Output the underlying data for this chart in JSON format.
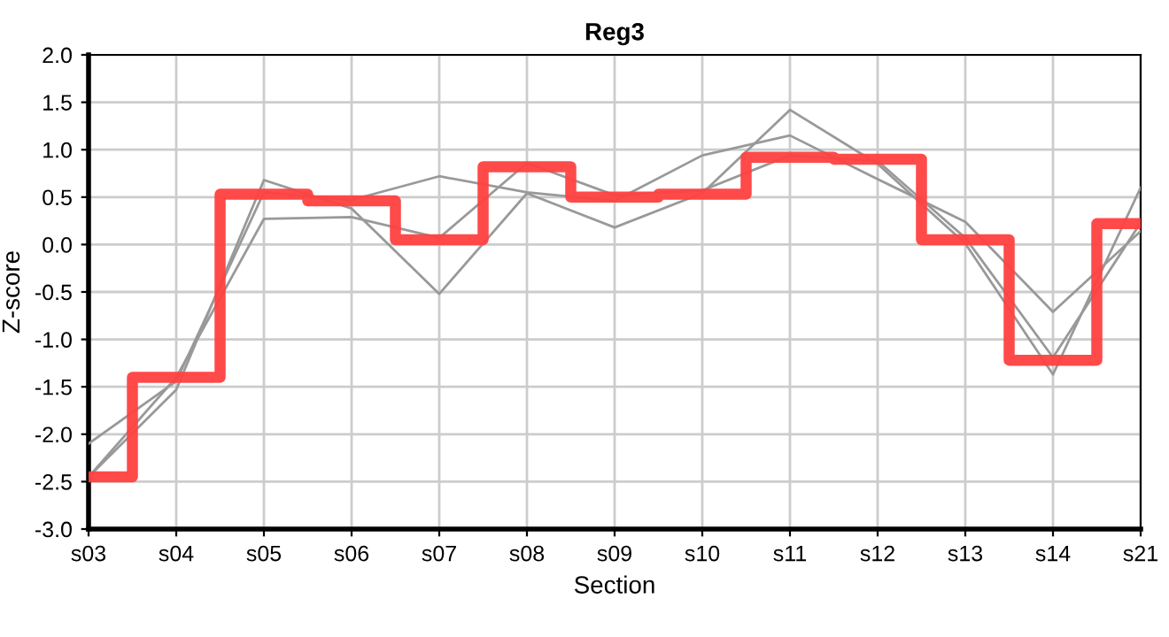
{
  "chart_data": {
    "type": "line",
    "title": "Reg3",
    "xlabel": "Section",
    "ylabel": "Z-score",
    "categories": [
      "s03",
      "s04",
      "s05",
      "s06",
      "s07",
      "s08",
      "s09",
      "s10",
      "s11",
      "s12",
      "s13",
      "s14",
      "s21"
    ],
    "series": [
      {
        "color": "#999999",
        "values": [
          -2.45,
          -1.53,
          0.68,
          0.38,
          -0.52,
          0.54,
          0.18,
          0.54,
          1.42,
          0.85,
          0.01,
          -1.37,
          0.6
        ]
      },
      {
        "color": "#999999",
        "values": [
          -2.1,
          -1.44,
          0.55,
          0.47,
          0.72,
          0.55,
          0.46,
          0.94,
          1.15,
          0.69,
          0.24,
          -0.71,
          0.14
        ]
      },
      {
        "color": "#999999",
        "values": [
          -2.45,
          -1.4,
          0.27,
          0.29,
          0.07,
          0.86,
          0.52,
          0.57,
          0.94,
          0.88,
          0.07,
          -1.19,
          0.23
        ]
      },
      {
        "type": "step",
        "color": "#ff4040",
        "values": [
          -2.45,
          -1.4,
          0.53,
          0.46,
          0.05,
          0.82,
          0.5,
          0.53,
          0.92,
          0.9,
          0.05,
          -1.22,
          0.22
        ]
      }
    ],
    "ylim": [
      -3.0,
      2.0
    ],
    "yticks": [
      {
        "value": -3,
        "label": "-3.0"
      },
      {
        "value": -2.5,
        "label": "-2.5"
      },
      {
        "value": -2,
        "label": "-2.0"
      },
      {
        "value": -1.5,
        "label": "-1.5"
      },
      {
        "value": -1,
        "label": "-1.0"
      },
      {
        "value": -0.5,
        "label": "-0.5"
      },
      {
        "value": 0,
        "label": "0.0"
      },
      {
        "value": 0.5,
        "label": "0.5"
      },
      {
        "value": 1,
        "label": "1.0"
      },
      {
        "value": 1.5,
        "label": "1.5"
      },
      {
        "value": 2,
        "label": "2.0"
      }
    ],
    "grid": true,
    "marker": "none",
    "line_style": "solid"
  }
}
